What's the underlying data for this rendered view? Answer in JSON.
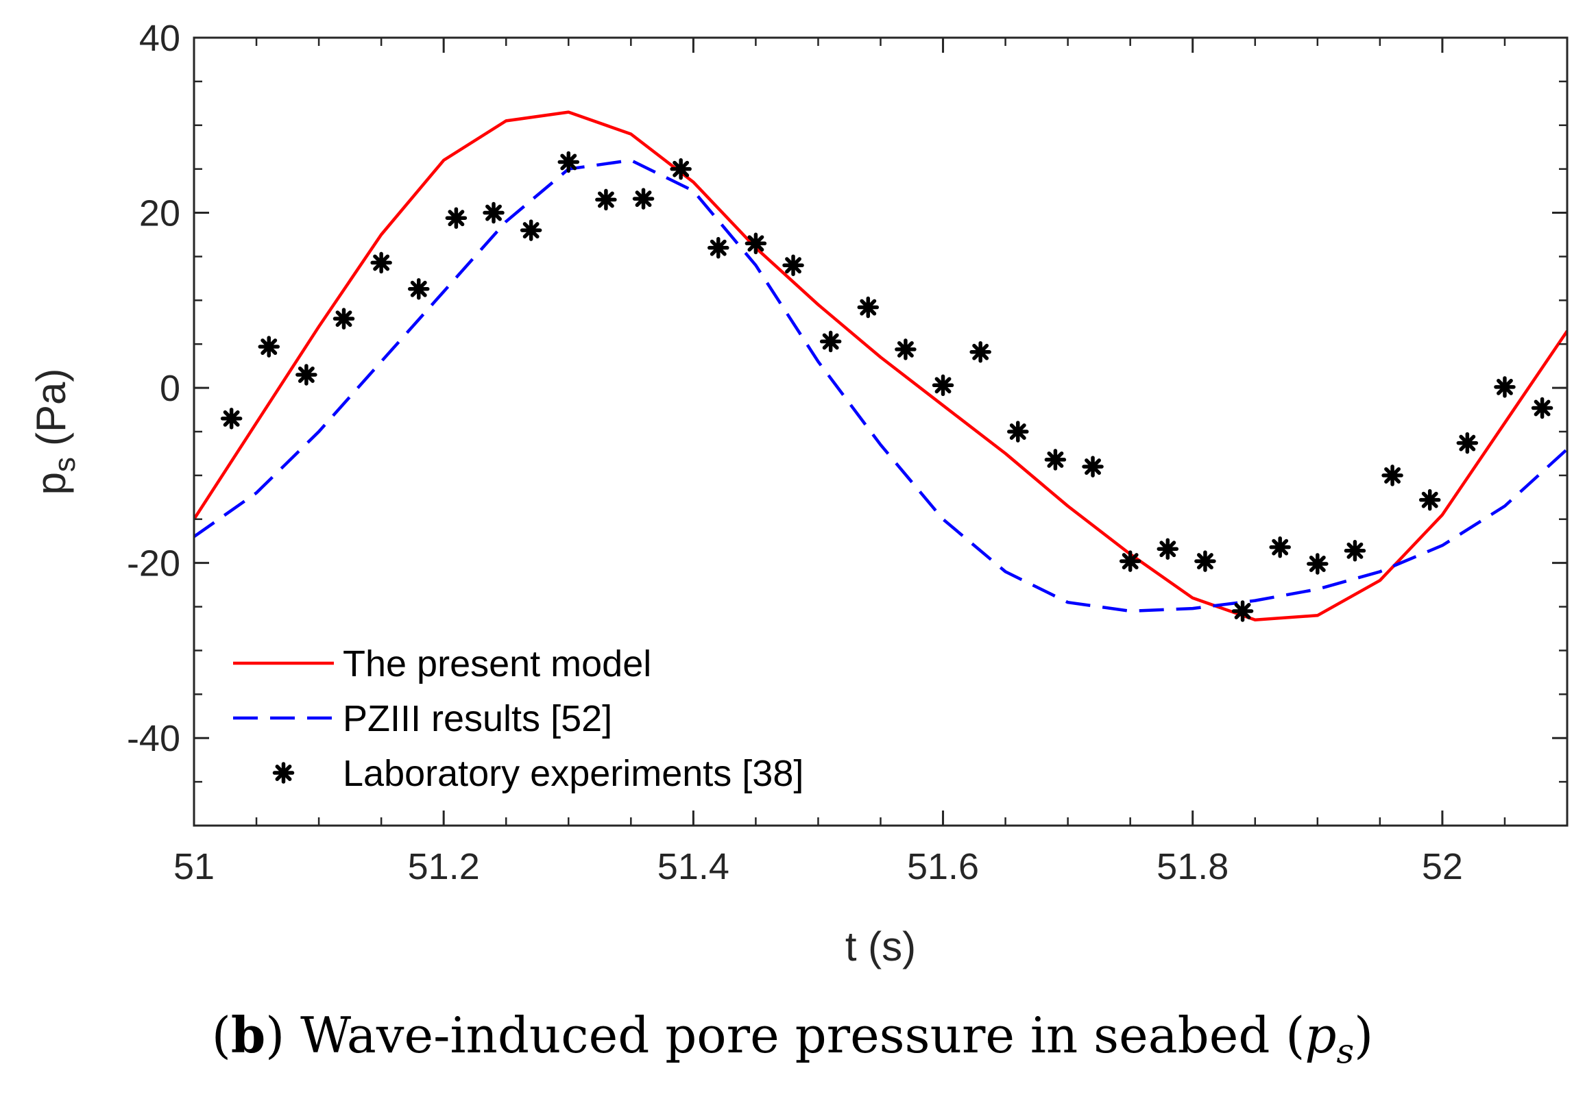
{
  "caption": {
    "letter": "b",
    "text": "Wave-induced pore pressure in seabed",
    "symbol_base": "p",
    "symbol_sub": "s"
  },
  "chart_data": {
    "type": "line",
    "title": "",
    "xlabel": "t (s)",
    "ylabel_base": "p",
    "ylabel_sub": "s",
    "ylabel_unit": "(Pa)",
    "xlim": [
      51,
      52.1
    ],
    "ylim": [
      -50,
      40
    ],
    "xticks": [
      51,
      51.2,
      51.4,
      51.6,
      51.8,
      52
    ],
    "xtick_labels": [
      "51",
      "51.2",
      "51.4",
      "51.6",
      "51.8",
      "52"
    ],
    "yticks": [
      -40,
      -20,
      0,
      20,
      40
    ],
    "ytick_labels": [
      "-40",
      "-20",
      "0",
      "20",
      "40"
    ],
    "legend_position": "bottom-left",
    "series": [
      {
        "name": "The present model",
        "style": "solid",
        "color": "#ff0000",
        "x": [
          51.0,
          51.05,
          51.1,
          51.15,
          51.2,
          51.25,
          51.3,
          51.35,
          51.4,
          51.45,
          51.5,
          51.55,
          51.6,
          51.65,
          51.7,
          51.75,
          51.8,
          51.85,
          51.9,
          51.95,
          52.0,
          52.05,
          52.1
        ],
        "y": [
          -15,
          -4,
          7,
          17.5,
          26,
          30.5,
          31.5,
          29,
          23.5,
          16,
          9.5,
          3.5,
          -2,
          -7.5,
          -13.5,
          -19,
          -24,
          -26.5,
          -26,
          -22,
          -14.5,
          -4,
          6.5
        ]
      },
      {
        "name": "PZIII results [52]",
        "style": "dashed",
        "color": "#0000ff",
        "x": [
          51.0,
          51.05,
          51.1,
          51.15,
          51.2,
          51.25,
          51.3,
          51.35,
          51.4,
          51.45,
          51.5,
          51.55,
          51.6,
          51.65,
          51.7,
          51.75,
          51.8,
          51.85,
          51.9,
          51.95,
          52.0,
          52.05,
          52.1
        ],
        "y": [
          -17,
          -12,
          -5,
          3,
          11,
          19,
          25,
          26,
          22.5,
          14,
          3,
          -6.5,
          -15,
          -21,
          -24.5,
          -25.5,
          -25.2,
          -24.3,
          -23,
          -21,
          -18,
          -13.5,
          -7
        ]
      },
      {
        "name": "Laboratory experiments [38]",
        "style": "marker",
        "color": "#000000",
        "x": [
          51.03,
          51.06,
          51.09,
          51.12,
          51.15,
          51.18,
          51.21,
          51.24,
          51.27,
          51.3,
          51.33,
          51.36,
          51.39,
          51.42,
          51.45,
          51.48,
          51.51,
          51.54,
          51.57,
          51.6,
          51.63,
          51.66,
          51.69,
          51.72,
          51.75,
          51.78,
          51.81,
          51.84,
          51.87,
          51.9,
          51.93,
          51.96,
          51.99,
          52.02,
          52.05,
          52.08
        ],
        "y": [
          -3.5,
          4.7,
          1.5,
          7.9,
          14.3,
          11.3,
          19.4,
          20.0,
          18.0,
          25.8,
          21.5,
          21.6,
          25.0,
          16.0,
          16.5,
          14.0,
          5.3,
          9.2,
          4.4,
          0.3,
          4.1,
          -5.0,
          -8.2,
          -9.0,
          -19.8,
          -18.4,
          -19.8,
          -25.5,
          -18.2,
          -20.1,
          -18.6,
          -10.0,
          -12.8,
          -6.3,
          0.1,
          -2.3
        ]
      }
    ]
  }
}
